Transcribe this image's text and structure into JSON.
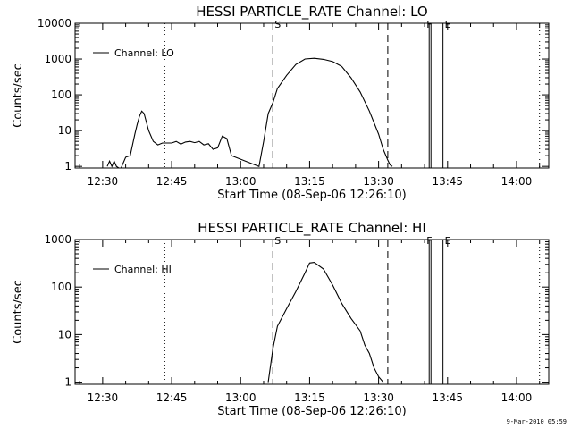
{
  "timestamp": "9-Mar-2010 05:59",
  "chart_data": [
    {
      "type": "line",
      "title": "HESSI PARTICLE_RATE Channel: LO",
      "xlabel": "Start Time (08-Sep-06 12:26:10)",
      "ylabel": "Counts/sec",
      "y_scale": "log",
      "ylim": [
        0.9,
        10000
      ],
      "x_range": [
        "12:24",
        "14:07"
      ],
      "x_ticks": [
        "12:30",
        "12:45",
        "13:00",
        "13:15",
        "13:30",
        "13:45",
        "14:00"
      ],
      "y_ticks": [
        "1",
        "10",
        "100",
        "1000",
        "10000"
      ],
      "legend": {
        "label": "Channel: LO",
        "position": "top-left"
      },
      "markers": [
        {
          "label": "S",
          "time": "13:07",
          "style": "dashed"
        },
        {
          "label": "",
          "time": "13:32",
          "style": "dashed"
        },
        {
          "label": "",
          "time": "12:43.5",
          "style": "dotted"
        },
        {
          "label": "",
          "time": "14:05",
          "style": "dotted"
        },
        {
          "label": "F",
          "time": "13:41",
          "style": "solid"
        },
        {
          "label": "E",
          "time": "13:44",
          "style": "solid"
        }
      ],
      "series": [
        {
          "x": [
            "12:31",
            "12:31.5",
            "12:32",
            "12:32.5",
            "12:33",
            "12:33.5",
            "12:34",
            "12:35",
            "12:36",
            "12:37",
            "12:37.5",
            "12:38",
            "12:38.5",
            "12:39",
            "12:40",
            "12:41",
            "12:42",
            "12:43",
            "12:44",
            "12:45",
            "12:46",
            "12:47",
            "12:48",
            "12:49",
            "12:50",
            "12:51",
            "12:52",
            "12:53",
            "12:54",
            "12:55",
            "12:56",
            "12:57",
            "12:58",
            "13:04",
            "13:05",
            "13:06",
            "13:07",
            "13:08",
            "13:10",
            "13:12",
            "13:14",
            "13:16",
            "13:18",
            "13:20",
            "13:22",
            "13:24",
            "13:26",
            "13:28",
            "13:30",
            "13:31",
            "13:32",
            "13:32.5",
            "13:33"
          ],
          "y": [
            1,
            1.4,
            1,
            1.4,
            1,
            0.9,
            0.9,
            1.8,
            2,
            8,
            15,
            25,
            35,
            30,
            10,
            5,
            4,
            4.5,
            4.5,
            4.5,
            5,
            4.2,
            4.8,
            5,
            4.6,
            5,
            4,
            4.3,
            3,
            3.3,
            7,
            6,
            2,
            1,
            5,
            30,
            60,
            150,
            350,
            700,
            1000,
            1050,
            980,
            850,
            620,
            300,
            120,
            35,
            8,
            3,
            1.5,
            1.1,
            1
          ]
        }
      ]
    },
    {
      "type": "line",
      "title": "HESSI PARTICLE_RATE Channel: HI",
      "xlabel": "Start Time (08-Sep-06 12:26:10)",
      "ylabel": "Counts/sec",
      "y_scale": "log",
      "ylim": [
        0.9,
        1000
      ],
      "x_range": [
        "12:24",
        "14:07"
      ],
      "x_ticks": [
        "12:30",
        "12:45",
        "13:00",
        "13:15",
        "13:30",
        "13:45",
        "14:00"
      ],
      "y_ticks": [
        "1",
        "10",
        "100",
        "1000"
      ],
      "legend": {
        "label": "Channel: HI",
        "position": "top-left"
      },
      "markers": [
        {
          "label": "S",
          "time": "13:07",
          "style": "dashed"
        },
        {
          "label": "",
          "time": "13:32",
          "style": "dashed"
        },
        {
          "label": "",
          "time": "12:43.5",
          "style": "dotted"
        },
        {
          "label": "",
          "time": "14:05",
          "style": "dotted"
        },
        {
          "label": "F",
          "time": "13:41",
          "style": "solid"
        },
        {
          "label": "E",
          "time": "13:44",
          "style": "solid"
        }
      ],
      "series": [
        {
          "x": [
            "13:06",
            "13:07",
            "13:08",
            "13:10",
            "13:12",
            "13:14",
            "13:15",
            "13:16",
            "13:18",
            "13:20",
            "13:22",
            "13:24",
            "13:26",
            "13:27",
            "13:28",
            "13:29",
            "13:30",
            "13:31"
          ],
          "y": [
            1,
            5,
            15,
            35,
            80,
            200,
            320,
            330,
            240,
            110,
            45,
            22,
            12,
            6,
            4,
            2,
            1.3,
            1
          ]
        }
      ]
    }
  ]
}
